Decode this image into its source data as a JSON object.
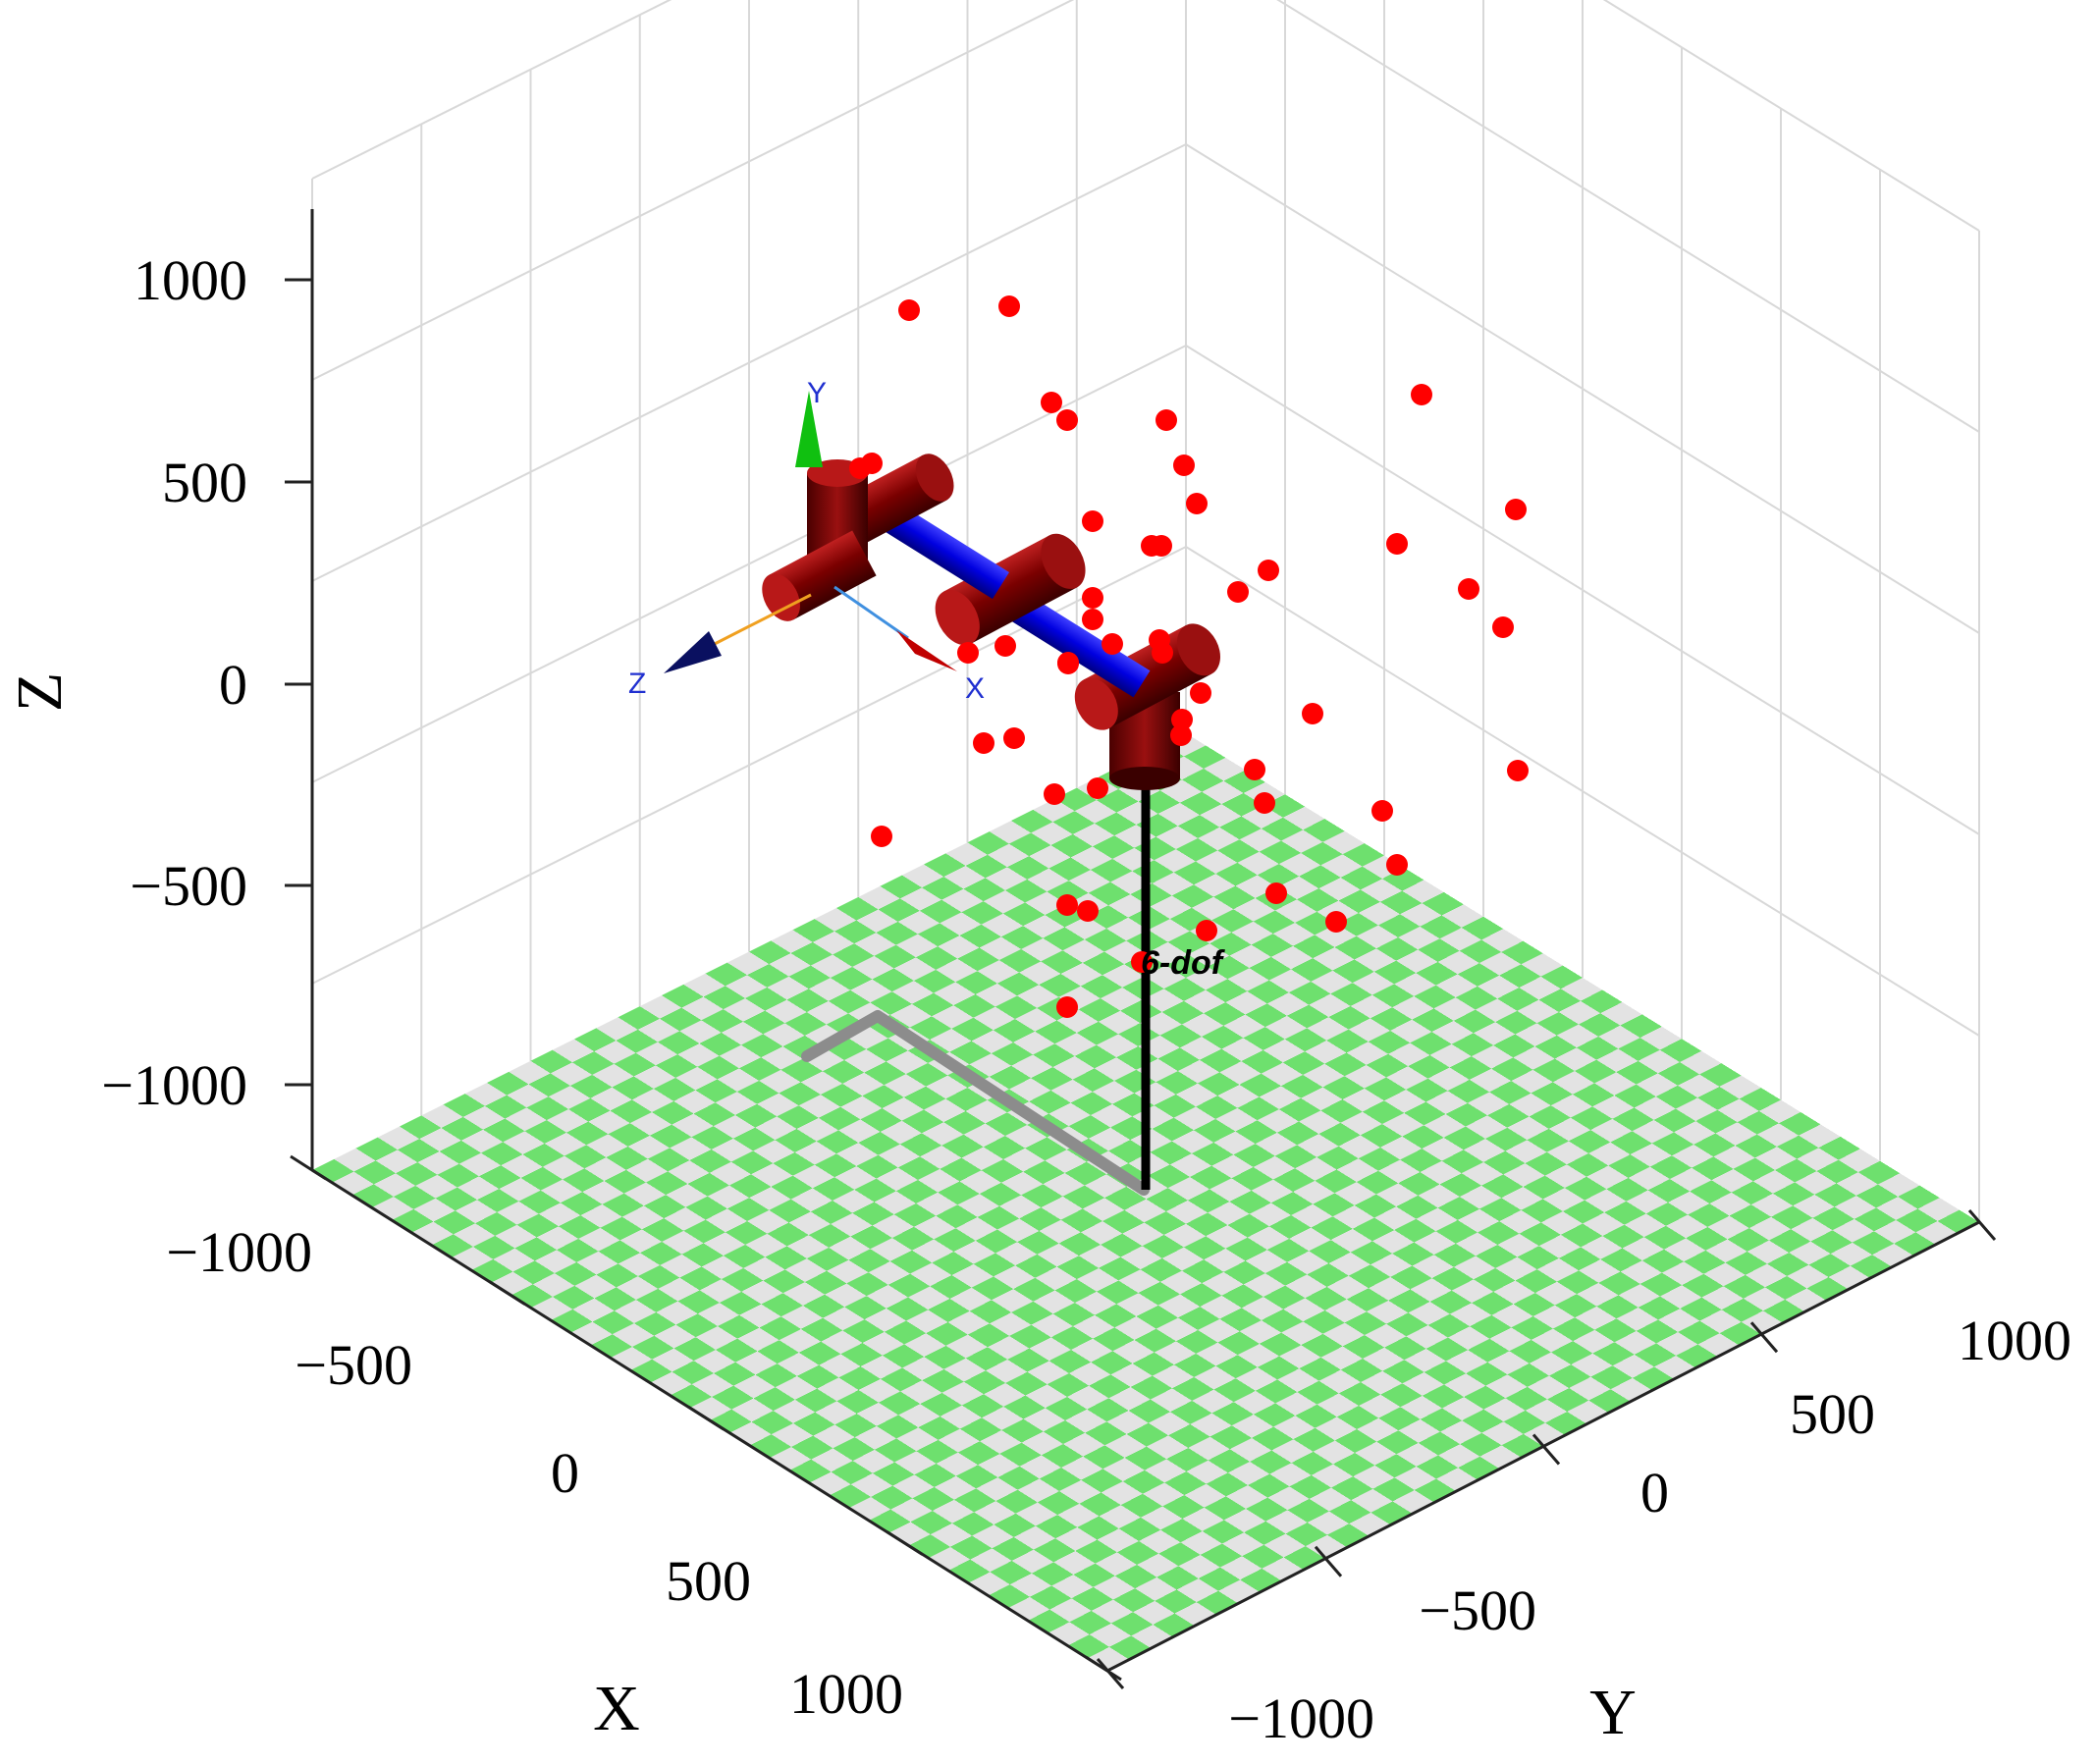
{
  "chart_data": {
    "type": "scatter",
    "projection": "3d",
    "xlabel": "X",
    "ylabel": "Y",
    "zlabel": "Z",
    "xlim": [
      -1000,
      1000
    ],
    "ylim": [
      -1000,
      1000
    ],
    "zlim": [
      -1000,
      1000
    ],
    "x_ticks": [
      "−1000",
      "−500",
      "0",
      "500",
      "1000"
    ],
    "y_ticks": [
      "−1000",
      "−500",
      "0",
      "500",
      "1000"
    ],
    "z_ticks": [
      "−1000",
      "−500",
      "0",
      "500",
      "1000"
    ],
    "grid": true,
    "floor": "checkerboard",
    "robot_name": "6-dof",
    "end_effector_frame": {
      "x_label": "X",
      "y_label": "Y",
      "z_label": "Z"
    },
    "point_color": "#ff0000",
    "floor_colors": [
      "#6ee06e",
      "#e3e3e3"
    ],
    "link_colors": {
      "joints": "#7a0000",
      "links": "#0000e0",
      "base": "#000000",
      "shadow": "#8c8c8c"
    },
    "points_screen": [
      [
        926,
        316
      ],
      [
        1028,
        312
      ],
      [
        1071,
        410
      ],
      [
        1087,
        428
      ],
      [
        1188,
        428
      ],
      [
        1448,
        402
      ],
      [
        1206,
        474
      ],
      [
        1219,
        513
      ],
      [
        1113,
        531
      ],
      [
        1173,
        556
      ],
      [
        1183,
        556
      ],
      [
        1544,
        519
      ],
      [
        1423,
        554
      ],
      [
        1496,
        600
      ],
      [
        1292,
        581
      ],
      [
        1261,
        603
      ],
      [
        1531,
        639
      ],
      [
        1113,
        609
      ],
      [
        1113,
        631
      ],
      [
        1133,
        656
      ],
      [
        1088,
        676
      ],
      [
        1181,
        652
      ],
      [
        1024,
        658
      ],
      [
        986,
        665
      ],
      [
        1184,
        665
      ],
      [
        1088,
        675
      ],
      [
        1223,
        706
      ],
      [
        1337,
        727
      ],
      [
        1204,
        733
      ],
      [
        1203,
        749
      ],
      [
        1002,
        757
      ],
      [
        1033,
        752
      ],
      [
        1546,
        785
      ],
      [
        1278,
        784
      ],
      [
        1288,
        818
      ],
      [
        1408,
        826
      ],
      [
        1118,
        803
      ],
      [
        1074,
        809
      ],
      [
        1423,
        881
      ],
      [
        1300,
        910
      ],
      [
        1087,
        922
      ],
      [
        1361,
        939
      ],
      [
        1108,
        928
      ],
      [
        1229,
        948
      ],
      [
        898,
        852
      ],
      [
        1163,
        980
      ],
      [
        1087,
        1026
      ],
      [
        876,
        477
      ],
      [
        888,
        472
      ]
    ]
  }
}
